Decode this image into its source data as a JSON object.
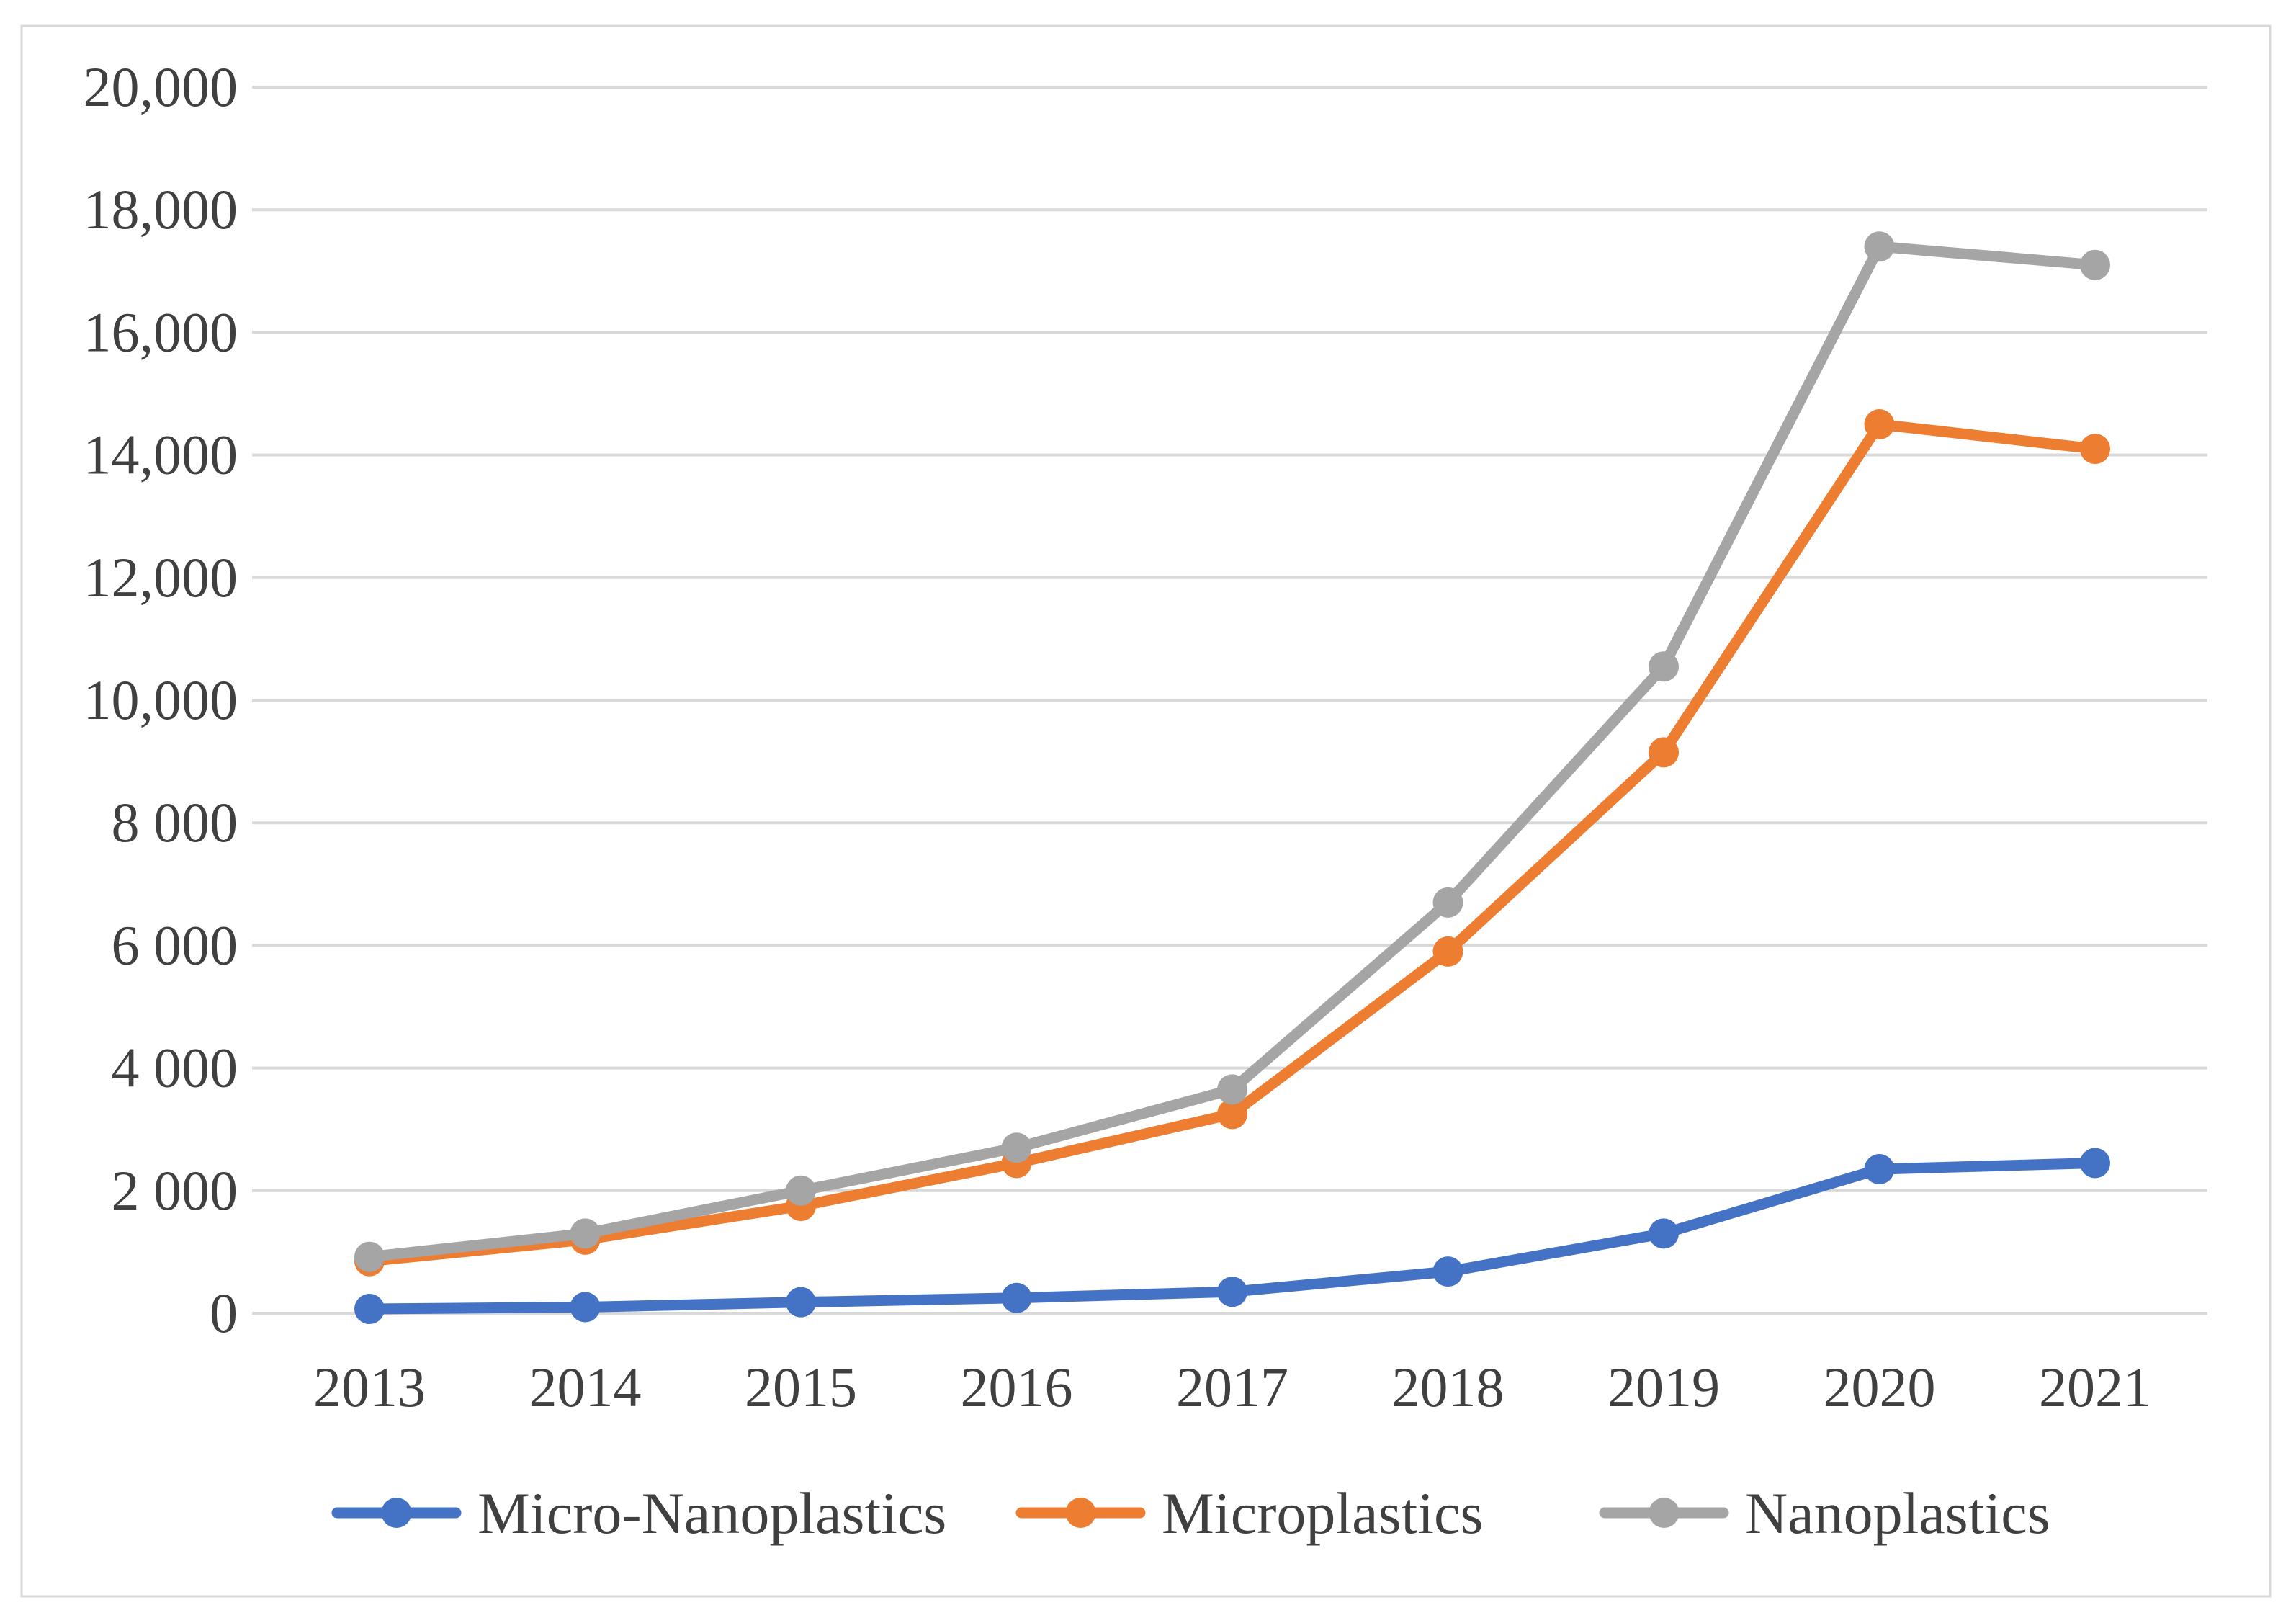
{
  "figure": {
    "background": "#FFFFFF",
    "border_color": "#D9D9D9"
  },
  "chart_data": {
    "type": "line",
    "title": "",
    "xlabel": "",
    "ylabel": "",
    "x": [
      "2013",
      "2014",
      "2015",
      "2016",
      "2017",
      "2018",
      "2019",
      "2020",
      "2021"
    ],
    "series": [
      {
        "name": "Micro-Nanoplastics",
        "color": "#4472C4",
        "values": [
          70,
          100,
          180,
          250,
          350,
          680,
          1300,
          2350,
          2450
        ]
      },
      {
        "name": "Microplastics",
        "color": "#ED7D31",
        "values": [
          850,
          1200,
          1750,
          2450,
          3250,
          5900,
          9150,
          14500,
          14100
        ]
      },
      {
        "name": "Nanoplastics",
        "color": "#A5A5A5",
        "values": [
          920,
          1300,
          2000,
          2700,
          3650,
          6700,
          10550,
          17400,
          17100
        ]
      }
    ],
    "y_axis": {
      "min": 0,
      "max": 20000,
      "step": 2000,
      "tick_labels": [
        "0",
        "2 000",
        "4 000",
        "6 000",
        "8 000",
        "10,000",
        "12,000",
        "14,000",
        "16,000",
        "18,000",
        "20,000"
      ]
    },
    "grid": {
      "horizontal": true,
      "vertical": false,
      "color": "#D9D9D9"
    },
    "legend": {
      "position": "bottom",
      "entries": [
        "Micro-Nanoplastics",
        "Microplastics",
        "Nanoplastics"
      ]
    },
    "text_color": "#404040"
  }
}
